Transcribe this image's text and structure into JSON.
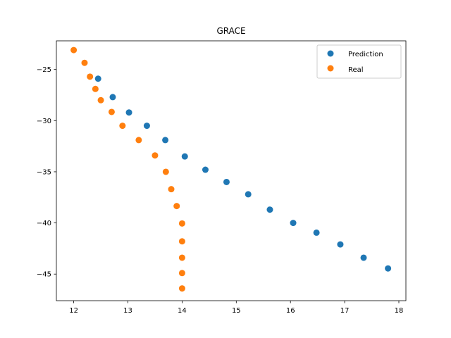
{
  "chart_data": {
    "type": "scatter",
    "title": "GRACE",
    "xlabel": "",
    "ylabel": "",
    "xlim": [
      11.68,
      18.13
    ],
    "ylim": [
      -47.6,
      -22.2
    ],
    "xticks": [
      12,
      13,
      14,
      15,
      16,
      17,
      18
    ],
    "yticks": [
      -25,
      -30,
      -35,
      -40,
      -45
    ],
    "xtick_labels": [
      "12",
      "13",
      "14",
      "15",
      "16",
      "17",
      "18"
    ],
    "ytick_labels": [
      "−25",
      "−30",
      "−35",
      "−40",
      "−45"
    ],
    "grid": false,
    "legend_position": "top-right",
    "series": [
      {
        "name": "Prediction",
        "color": "#1f77b4",
        "points": [
          {
            "x": 12.45,
            "y": -25.9
          },
          {
            "x": 12.72,
            "y": -27.7
          },
          {
            "x": 13.02,
            "y": -29.2
          },
          {
            "x": 13.35,
            "y": -30.5
          },
          {
            "x": 13.69,
            "y": -31.9
          },
          {
            "x": 14.05,
            "y": -33.5
          },
          {
            "x": 14.43,
            "y": -34.8
          },
          {
            "x": 14.82,
            "y": -36.0
          },
          {
            "x": 15.22,
            "y": -37.2
          },
          {
            "x": 15.62,
            "y": -38.7
          },
          {
            "x": 16.05,
            "y": -40.0
          },
          {
            "x": 16.48,
            "y": -40.95
          },
          {
            "x": 16.92,
            "y": -42.1
          },
          {
            "x": 17.35,
            "y": -43.4
          },
          {
            "x": 17.8,
            "y": -44.45
          }
        ]
      },
      {
        "name": "Real",
        "color": "#ff7f0e",
        "points": [
          {
            "x": 12.0,
            "y": -23.1
          },
          {
            "x": 12.2,
            "y": -24.35
          },
          {
            "x": 12.3,
            "y": -25.7
          },
          {
            "x": 12.4,
            "y": -26.9
          },
          {
            "x": 12.5,
            "y": -28.0
          },
          {
            "x": 12.7,
            "y": -29.15
          },
          {
            "x": 12.9,
            "y": -30.5
          },
          {
            "x": 13.2,
            "y": -31.9
          },
          {
            "x": 13.5,
            "y": -33.4
          },
          {
            "x": 13.7,
            "y": -35.0
          },
          {
            "x": 13.8,
            "y": -36.7
          },
          {
            "x": 13.9,
            "y": -38.35
          },
          {
            "x": 14.0,
            "y": -40.05
          },
          {
            "x": 14.0,
            "y": -41.8
          },
          {
            "x": 14.0,
            "y": -43.4
          },
          {
            "x": 14.0,
            "y": -44.9
          },
          {
            "x": 14.0,
            "y": -46.4
          }
        ]
      }
    ]
  }
}
